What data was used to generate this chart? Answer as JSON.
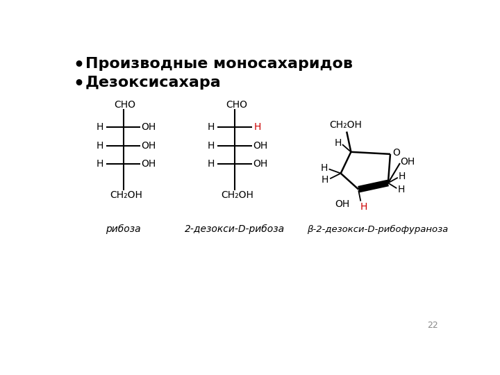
{
  "title1": "Производные моносахаридов",
  "title2": "Дезоксисахара",
  "label1": "рибоза",
  "label2": "2-дезокси-D-рибоза",
  "label3": "β-2-дезокси-D-рибофураноза",
  "page_num": "22",
  "bg_color": "#ffffff",
  "black": "#000000",
  "red": "#cc0000"
}
